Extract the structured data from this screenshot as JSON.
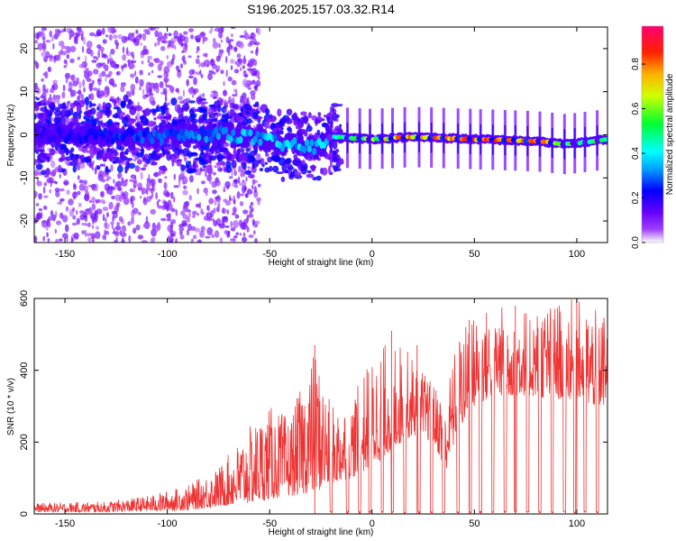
{
  "title": "S196.2025.157.03.32.R14",
  "chart_data": [
    {
      "type": "heatmap",
      "xlabel": "Height of straight line (km)",
      "ylabel": "Frequency (Hz)",
      "xlim": [
        -165,
        115
      ],
      "ylim": [
        -25,
        25
      ],
      "x_ticks": [
        -150,
        -100,
        -50,
        0,
        50,
        100
      ],
      "x_tick_labels": [
        "-150",
        "-100",
        "-50",
        "0",
        "50",
        "100"
      ],
      "y_ticks": [
        -20,
        -10,
        0,
        10,
        20
      ],
      "y_tick_labels": [
        "-20",
        "-10",
        "0",
        "10",
        "20"
      ],
      "colorbar": {
        "label": "Normalized spectral amplitude",
        "range": [
          0,
          0.97
        ],
        "ticks": [
          0.0,
          0.2,
          0.4,
          0.6,
          0.8
        ],
        "tick_labels": [
          "0.0",
          "0.2",
          "0.4",
          "0.6",
          "0.8"
        ],
        "colormap": [
          "#ffffff",
          "#8800ff",
          "#3300ff",
          "#0099ff",
          "#00ffff",
          "#00ff44",
          "#ccff00",
          "#ffcc00",
          "#ff4400",
          "#ff0066"
        ]
      },
      "ridge": [
        {
          "x": -165,
          "f": 0.0
        },
        {
          "x": -100,
          "f": -0.3
        },
        {
          "x": -70,
          "f": 0.3
        },
        {
          "x": -55,
          "f": -1.0
        },
        {
          "x": -40,
          "f": -2.5
        },
        {
          "x": -28,
          "f": -3.0
        },
        {
          "x": -20,
          "f": -0.5
        },
        {
          "x": 0,
          "f": -1.0
        },
        {
          "x": 20,
          "f": -0.5
        },
        {
          "x": 50,
          "f": -1.0
        },
        {
          "x": 80,
          "f": -1.5
        },
        {
          "x": 95,
          "f": -2.2
        },
        {
          "x": 115,
          "f": -1.0
        }
      ],
      "peak_amplitude": [
        {
          "x": -165,
          "a": 0.2
        },
        {
          "x": -80,
          "a": 0.35
        },
        {
          "x": -60,
          "a": 0.4
        },
        {
          "x": -30,
          "a": 0.4
        },
        {
          "x": -20,
          "a": 0.5
        },
        {
          "x": 0,
          "a": 0.65
        },
        {
          "x": 10,
          "a": 0.8
        },
        {
          "x": 30,
          "a": 0.9
        },
        {
          "x": 60,
          "a": 0.95
        },
        {
          "x": 80,
          "a": 0.95
        },
        {
          "x": 95,
          "a": 0.6
        },
        {
          "x": 115,
          "a": 0.55
        }
      ]
    },
    {
      "type": "line",
      "xlabel": "Height of straight line (km)",
      "ylabel": "SNR (10 * v/v)",
      "xlim": [
        -165,
        115
      ],
      "ylim": [
        0,
        600
      ],
      "x_ticks": [
        -150,
        -100,
        -50,
        0,
        50,
        100
      ],
      "x_tick_labels": [
        "-150",
        "-100",
        "-50",
        "0",
        "50",
        "100"
      ],
      "y_ticks": [
        0,
        200,
        400,
        600
      ],
      "y_tick_labels": [
        "0",
        "200",
        "400",
        "600"
      ],
      "color": "#ee3333",
      "envelope": [
        {
          "x": -165,
          "lo": 5,
          "hi": 30
        },
        {
          "x": -130,
          "lo": 5,
          "hi": 35
        },
        {
          "x": -110,
          "lo": 8,
          "hi": 50
        },
        {
          "x": -90,
          "lo": 10,
          "hi": 80
        },
        {
          "x": -75,
          "lo": 20,
          "hi": 130
        },
        {
          "x": -60,
          "lo": 30,
          "hi": 240
        },
        {
          "x": -50,
          "lo": 40,
          "hi": 300
        },
        {
          "x": -40,
          "lo": 50,
          "hi": 270
        },
        {
          "x": -28,
          "lo": 60,
          "hi": 460
        },
        {
          "x": -20,
          "lo": 80,
          "hi": 300
        },
        {
          "x": -10,
          "lo": 100,
          "hi": 320
        },
        {
          "x": 0,
          "lo": 130,
          "hi": 440
        },
        {
          "x": 10,
          "lo": 180,
          "hi": 500
        },
        {
          "x": 20,
          "lo": 220,
          "hi": 440
        },
        {
          "x": 30,
          "lo": 200,
          "hi": 360
        },
        {
          "x": 36,
          "lo": 120,
          "hi": 340
        },
        {
          "x": 42,
          "lo": 230,
          "hi": 500
        },
        {
          "x": 50,
          "lo": 300,
          "hi": 560
        },
        {
          "x": 60,
          "lo": 330,
          "hi": 580
        },
        {
          "x": 75,
          "lo": 330,
          "hi": 580
        },
        {
          "x": 90,
          "lo": 320,
          "hi": 590
        },
        {
          "x": 100,
          "lo": 320,
          "hi": 600
        },
        {
          "x": 108,
          "lo": 300,
          "hi": 570
        },
        {
          "x": 115,
          "lo": 300,
          "hi": 560
        }
      ],
      "dropouts_x": [
        -20,
        -12,
        -6,
        -1,
        5,
        10,
        16,
        23,
        29,
        35,
        42,
        48,
        53,
        59,
        65,
        70,
        76,
        82,
        88,
        94,
        99,
        104,
        110
      ],
      "spikes": [
        {
          "x": -28,
          "y": 470
        },
        {
          "x": 9.5,
          "y": 510
        },
        {
          "x": 22,
          "y": 470
        },
        {
          "x": 47.5,
          "y": 540
        },
        {
          "x": 70,
          "y": 580
        },
        {
          "x": 100,
          "y": 600
        }
      ]
    }
  ]
}
